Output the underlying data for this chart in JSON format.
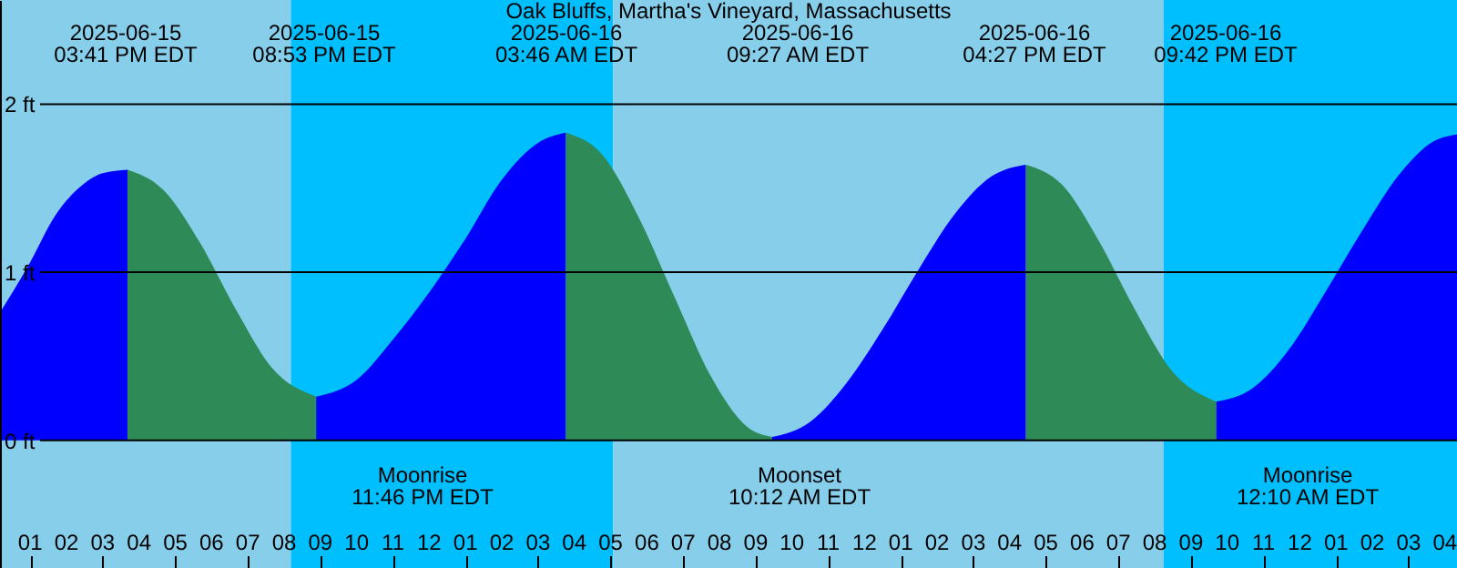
{
  "chart_data": {
    "type": "area",
    "title": "Oak Bluffs, Martha's Vineyard, Massachusetts",
    "xlim": [
      "2025-06-15T12:10",
      "2025-06-17T04:20"
    ],
    "x": [
      "2025-06-15T12:10",
      "2025-06-15T13:00",
      "2025-06-15T13:40",
      "2025-06-15T14:20",
      "2025-06-15T15:00",
      "2025-06-15T15:41",
      "2025-06-15T16:40",
      "2025-06-15T17:40",
      "2025-06-15T18:40",
      "2025-06-15T19:40",
      "2025-06-15T20:53",
      "2025-06-15T22:00",
      "2025-06-15T23:00",
      "2025-06-16T00:00",
      "2025-06-16T01:00",
      "2025-06-16T02:00",
      "2025-06-16T03:00",
      "2025-06-16T03:46",
      "2025-06-16T04:46",
      "2025-06-16T05:46",
      "2025-06-16T06:46",
      "2025-06-16T07:46",
      "2025-06-16T08:46",
      "2025-06-16T09:27",
      "2025-06-16T10:30",
      "2025-06-16T11:30",
      "2025-06-16T12:30",
      "2025-06-16T13:30",
      "2025-06-16T14:30",
      "2025-06-16T15:30",
      "2025-06-16T16:27",
      "2025-06-16T17:27",
      "2025-06-16T18:27",
      "2025-06-16T19:27",
      "2025-06-16T20:27",
      "2025-06-16T21:42",
      "2025-06-16T22:42",
      "2025-06-16T23:42",
      "2025-06-17T00:42",
      "2025-06-17T01:42",
      "2025-06-17T02:42",
      "2025-06-17T03:42",
      "2025-06-17T04:20"
    ],
    "xticks": [
      {
        "value": "2025-06-15T13:00",
        "label": "01"
      },
      {
        "value": "2025-06-15T14:00",
        "label": "02"
      },
      {
        "value": "2025-06-15T15:00",
        "label": "03"
      },
      {
        "value": "2025-06-15T16:00",
        "label": "04"
      },
      {
        "value": "2025-06-15T17:00",
        "label": "05"
      },
      {
        "value": "2025-06-15T18:00",
        "label": "06"
      },
      {
        "value": "2025-06-15T19:00",
        "label": "07"
      },
      {
        "value": "2025-06-15T20:00",
        "label": "08"
      },
      {
        "value": "2025-06-15T21:00",
        "label": "09"
      },
      {
        "value": "2025-06-15T22:00",
        "label": "10"
      },
      {
        "value": "2025-06-15T23:00",
        "label": "11"
      },
      {
        "value": "2025-06-16T00:00",
        "label": "12"
      },
      {
        "value": "2025-06-16T01:00",
        "label": "01"
      },
      {
        "value": "2025-06-16T02:00",
        "label": "02"
      },
      {
        "value": "2025-06-16T03:00",
        "label": "03"
      },
      {
        "value": "2025-06-16T04:00",
        "label": "04"
      },
      {
        "value": "2025-06-16T05:00",
        "label": "05"
      },
      {
        "value": "2025-06-16T06:00",
        "label": "06"
      },
      {
        "value": "2025-06-16T07:00",
        "label": "07"
      },
      {
        "value": "2025-06-16T08:00",
        "label": "08"
      },
      {
        "value": "2025-06-16T09:00",
        "label": "09"
      },
      {
        "value": "2025-06-16T10:00",
        "label": "10"
      },
      {
        "value": "2025-06-16T11:00",
        "label": "11"
      },
      {
        "value": "2025-06-16T12:00",
        "label": "12"
      },
      {
        "value": "2025-06-16T13:00",
        "label": "01"
      },
      {
        "value": "2025-06-16T14:00",
        "label": "02"
      },
      {
        "value": "2025-06-16T15:00",
        "label": "03"
      },
      {
        "value": "2025-06-16T16:00",
        "label": "04"
      },
      {
        "value": "2025-06-16T17:00",
        "label": "05"
      },
      {
        "value": "2025-06-16T18:00",
        "label": "06"
      },
      {
        "value": "2025-06-16T19:00",
        "label": "07"
      },
      {
        "value": "2025-06-16T20:00",
        "label": "08"
      },
      {
        "value": "2025-06-16T21:00",
        "label": "09"
      },
      {
        "value": "2025-06-16T22:00",
        "label": "10"
      },
      {
        "value": "2025-06-16T23:00",
        "label": "11"
      },
      {
        "value": "2025-06-17T00:00",
        "label": "12"
      },
      {
        "value": "2025-06-17T01:00",
        "label": "01"
      },
      {
        "value": "2025-06-17T02:00",
        "label": "02"
      },
      {
        "value": "2025-06-17T03:00",
        "label": "03"
      },
      {
        "value": "2025-06-17T04:00",
        "label": "04"
      }
    ],
    "ylim": [
      -0.76,
      2.62
    ],
    "yticks": [
      {
        "value": 0,
        "label": "0 ft"
      },
      {
        "value": 1,
        "label": "1 ft"
      },
      {
        "value": 2,
        "label": "2 ft"
      }
    ],
    "grid": "y",
    "series": [
      {
        "color": "#0000ff",
        "values": [
          0.76,
          1.06,
          1.33,
          1.5,
          1.59,
          1.61,
          null,
          null,
          null,
          null,
          null,
          null,
          null,
          null,
          null,
          null,
          null,
          null,
          null,
          null,
          null,
          null,
          null,
          null,
          null,
          null,
          null,
          null,
          null,
          null,
          null,
          null,
          null,
          null,
          null,
          null,
          null,
          null,
          null,
          null,
          null,
          null,
          null
        ]
      },
      {
        "color": "#2e8b57",
        "values": [
          null,
          null,
          null,
          null,
          null,
          1.61,
          1.49,
          1.18,
          0.78,
          0.43,
          0.26,
          null,
          null,
          null,
          null,
          null,
          null,
          null,
          null,
          null,
          null,
          null,
          null,
          null,
          null,
          null,
          null,
          null,
          null,
          null,
          null,
          null,
          null,
          null,
          null,
          null,
          null,
          null,
          null,
          null,
          null,
          null,
          null
        ]
      },
      {
        "color": "#0000ff",
        "values": [
          null,
          null,
          null,
          null,
          null,
          null,
          null,
          null,
          null,
          null,
          0.26,
          0.36,
          0.6,
          0.88,
          1.2,
          1.55,
          1.77,
          1.83,
          null,
          null,
          null,
          null,
          null,
          null,
          null,
          null,
          null,
          null,
          null,
          null,
          null,
          null,
          null,
          null,
          null,
          null,
          null,
          null,
          null,
          null,
          null,
          null,
          null
        ]
      },
      {
        "color": "#2e8b57",
        "values": [
          null,
          null,
          null,
          null,
          null,
          null,
          null,
          null,
          null,
          null,
          null,
          null,
          null,
          null,
          null,
          null,
          null,
          1.83,
          1.7,
          1.33,
          0.85,
          0.38,
          0.08,
          0.02,
          null,
          null,
          null,
          null,
          null,
          null,
          null,
          null,
          null,
          null,
          null,
          null,
          null,
          null,
          null,
          null,
          null,
          null,
          null
        ]
      },
      {
        "color": "#0000ff",
        "values": [
          null,
          null,
          null,
          null,
          null,
          null,
          null,
          null,
          null,
          null,
          null,
          null,
          null,
          null,
          null,
          null,
          null,
          null,
          null,
          null,
          null,
          null,
          null,
          0.02,
          0.11,
          0.34,
          0.66,
          1.02,
          1.35,
          1.57,
          1.64,
          null,
          null,
          null,
          null,
          null,
          null,
          null,
          null,
          null,
          null,
          null,
          null
        ]
      },
      {
        "color": "#2e8b57",
        "values": [
          null,
          null,
          null,
          null,
          null,
          null,
          null,
          null,
          null,
          null,
          null,
          null,
          null,
          null,
          null,
          null,
          null,
          null,
          null,
          null,
          null,
          null,
          null,
          null,
          null,
          null,
          null,
          null,
          null,
          null,
          1.64,
          1.52,
          1.19,
          0.78,
          0.42,
          0.23,
          null,
          null,
          null,
          null,
          null,
          null,
          null
        ]
      },
      {
        "color": "#0000ff",
        "values": [
          null,
          null,
          null,
          null,
          null,
          null,
          null,
          null,
          null,
          null,
          null,
          null,
          null,
          null,
          null,
          null,
          null,
          null,
          null,
          null,
          null,
          null,
          null,
          null,
          null,
          null,
          null,
          null,
          null,
          null,
          null,
          null,
          null,
          null,
          null,
          0.23,
          0.31,
          0.54,
          0.88,
          1.24,
          1.57,
          1.78,
          1.82
        ]
      }
    ],
    "bands": [
      {
        "axis": "x",
        "from": "2025-06-15T12:10",
        "to": "2025-06-15T20:11",
        "color": "#87ceeb"
      },
      {
        "axis": "x",
        "from": "2025-06-15T20:11",
        "to": "2025-06-16T05:04",
        "color": "#00bfff"
      },
      {
        "axis": "x",
        "from": "2025-06-16T05:04",
        "to": "2025-06-16T20:15",
        "color": "#87ceeb"
      },
      {
        "axis": "x",
        "from": "2025-06-16T20:15",
        "to": "2025-06-17T04:20",
        "color": "#00bfff"
      }
    ],
    "annotations": [
      "2025-06-15\n03:41 PM EDT",
      "2025-06-15\n08:53 PM EDT",
      "2025-06-16\n03:46 AM EDT",
      "2025-06-16\n09:27 AM EDT",
      "2025-06-16\n04:27 PM EDT",
      "2025-06-16\n09:42 PM EDT",
      "Moonrise\n11:46 PM EDT",
      "Moonset\n10:12 AM EDT",
      "Moonrise\n12:10 AM EDT"
    ]
  }
}
